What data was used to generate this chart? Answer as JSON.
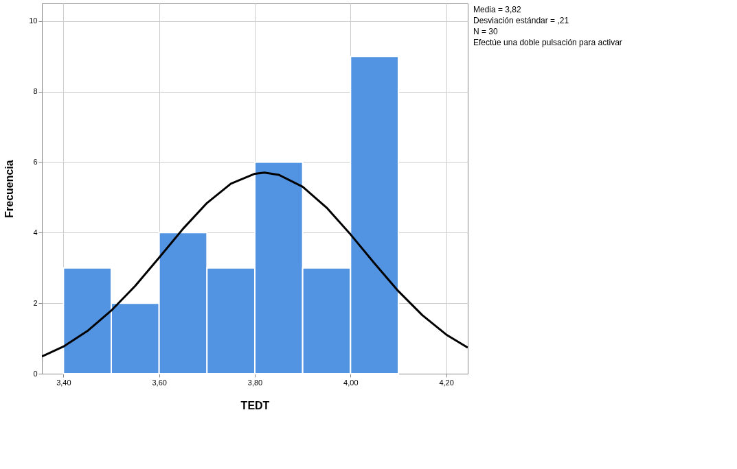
{
  "chart_data": {
    "type": "histogram",
    "xlabel": "TEDT",
    "ylabel": "Frecuencia",
    "bins": [
      3.4,
      3.5,
      3.6,
      3.7,
      3.8,
      3.9,
      4.0,
      4.1
    ],
    "values": [
      3,
      2,
      4,
      3,
      6,
      3,
      9
    ],
    "color": "#5294e2",
    "series": [
      {
        "type": "line",
        "color": "#000000",
        "x": [
          3.355,
          3.4,
          3.45,
          3.5,
          3.55,
          3.6,
          3.65,
          3.7,
          3.75,
          3.8,
          3.82,
          3.85,
          3.9,
          3.95,
          4.0,
          4.05,
          4.1,
          4.15,
          4.2,
          4.245
        ],
        "values": [
          0.49,
          0.77,
          1.21,
          1.79,
          2.49,
          3.29,
          4.11,
          4.84,
          5.39,
          5.67,
          5.7,
          5.64,
          5.3,
          4.71,
          3.95,
          3.13,
          2.34,
          1.66,
          1.11,
          0.74
        ]
      }
    ],
    "xlim": [
      3.355,
      4.245
    ],
    "xticks": [
      {
        "value": 3.4,
        "label": "3,40"
      },
      {
        "value": 3.6,
        "label": "3,60"
      },
      {
        "value": 3.8,
        "label": "3,80"
      },
      {
        "value": 4.0,
        "label": "4,00"
      },
      {
        "value": 4.2,
        "label": "4,20"
      }
    ],
    "ylim": [
      0,
      10.5
    ],
    "yticks": [
      0,
      2,
      4,
      6,
      8,
      10
    ],
    "grid": true,
    "annotations": [
      "Media = 3,82",
      "Desviación estándar = ,21",
      "N = 30",
      "Efectúe una doble pulsación para activar"
    ]
  }
}
